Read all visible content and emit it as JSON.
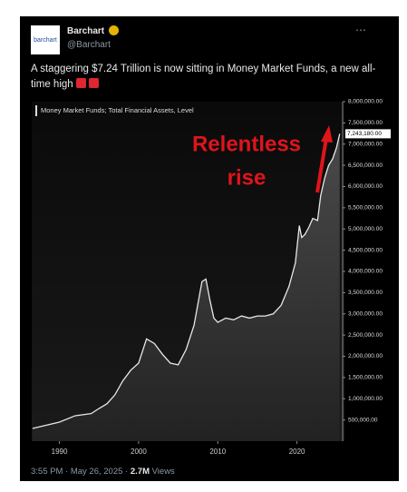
{
  "tweet": {
    "avatar_text": "barchart",
    "name": "Barchart",
    "handle": "@Barchart",
    "text": "A staggering $7.24 Trillion is now sitting in Money Market Funds, a new all-time high",
    "time": "3:55 PM",
    "date": "May 26, 2025",
    "views": "2.7M",
    "views_label": "Views"
  },
  "chart_data": {
    "type": "area",
    "title": "Money Market Funds; Total Financial Assets, Level",
    "annotations": [
      "Relentless",
      "rise"
    ],
    "series": [
      {
        "name": "Money Market Funds",
        "color": "#e8e8e8",
        "x": [
          1986.6,
          1990,
          1992,
          1994,
          1995,
          1996,
          1997,
          1998,
          1999,
          2000,
          2001,
          2002,
          2003,
          2004,
          2005,
          2006,
          2007,
          2008,
          2008.5,
          2009,
          2009.5,
          2010,
          2011,
          2012,
          2013,
          2014,
          2015,
          2016,
          2017,
          2018,
          2019,
          2019.8,
          2020.3,
          2020.6,
          2021,
          2021.5,
          2022,
          2022.6,
          2023,
          2023.5,
          2024,
          2024.5,
          2025,
          2025.4
        ],
        "values": [
          300000,
          450000,
          600000,
          650000,
          770000,
          880000,
          1090000,
          1420000,
          1670000,
          1840000,
          2410000,
          2300000,
          2050000,
          1840000,
          1800000,
          2160000,
          2730000,
          3760000,
          3820000,
          3330000,
          2900000,
          2800000,
          2900000,
          2860000,
          2950000,
          2900000,
          2950000,
          2950000,
          3000000,
          3200000,
          3650000,
          4200000,
          5080000,
          4800000,
          4870000,
          5040000,
          5250000,
          5200000,
          5790000,
          6200000,
          6500000,
          6650000,
          6920000,
          7243180
        ],
        "value_labels": [
          null,
          null,
          null,
          null,
          null,
          null,
          null,
          null,
          null,
          null,
          null,
          null,
          null,
          null,
          null,
          null,
          null,
          null,
          null,
          null,
          null,
          null,
          null,
          null,
          null,
          null,
          null,
          null,
          null,
          null,
          null,
          null,
          null,
          null,
          null,
          null,
          null,
          null,
          null,
          null,
          null,
          null,
          null,
          "7,243,180.00"
        ]
      }
    ],
    "xlim": [
      1986.5,
      2026
    ],
    "xticks": [
      1990,
      2000,
      2010,
      2020
    ],
    "ylim": [
      0,
      8000000
    ],
    "yticks": [
      {
        "value": 500000,
        "label": "500,000.00"
      },
      {
        "value": 1000000,
        "label": "1,000,000.00"
      },
      {
        "value": 1500000,
        "label": "1,500,000.00"
      },
      {
        "value": 2000000,
        "label": "2,000,000.00"
      },
      {
        "value": 2500000,
        "label": "2,500,000.00"
      },
      {
        "value": 3000000,
        "label": "3,000,000.00"
      },
      {
        "value": 3500000,
        "label": "3,500,000.00"
      },
      {
        "value": 4000000,
        "label": "4,000,000.00"
      },
      {
        "value": 4500000,
        "label": "4,500,000.00"
      },
      {
        "value": 5000000,
        "label": "5,000,000.00"
      },
      {
        "value": 5500000,
        "label": "5,500,000.00"
      },
      {
        "value": 6000000,
        "label": "6,000,000.00"
      },
      {
        "value": 6500000,
        "label": "6,500,000.00"
      },
      {
        "value": 7000000,
        "label": "7,000,000.00"
      },
      {
        "value": 7500000,
        "label": "7,500,000.00"
      },
      {
        "value": 8000000,
        "label": "8,000,000.00"
      }
    ]
  }
}
